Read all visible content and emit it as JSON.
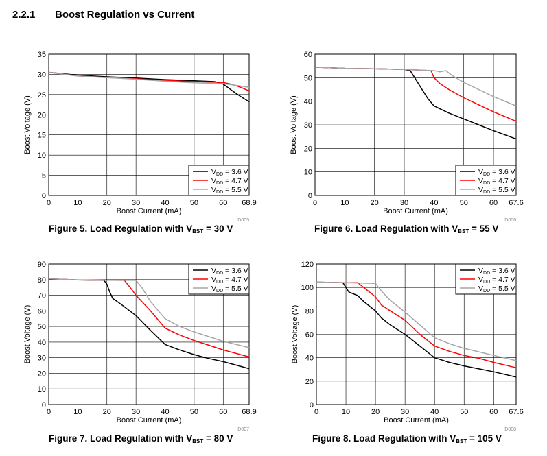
{
  "section": {
    "number": "2.2.1",
    "title": "Boost Regulation vs Current"
  },
  "chart_data": [
    {
      "id": "fig5",
      "type": "line",
      "code": "D005",
      "caption": {
        "prefix": "Figure 5. Load Regulation with V",
        "sub": "BST",
        "suffix": " = 30 V"
      },
      "xlabel": "Boost Current (mA)",
      "ylabel": "Boost Voltage (V)",
      "xlim": [
        0,
        68.9
      ],
      "ylim": [
        0,
        35
      ],
      "xticks": [
        0,
        10,
        20,
        30,
        40,
        50,
        60,
        68.9
      ],
      "yticks": [
        0,
        5,
        10,
        15,
        20,
        25,
        30,
        35
      ],
      "grid": true,
      "legend_position": "bottom-right",
      "series": [
        {
          "name_main": "V",
          "name_sub": "DD",
          "name_tail": " = 3.6 V",
          "color": "#000000",
          "points": [
            [
              0,
              30.5
            ],
            [
              10,
              29.8
            ],
            [
              20,
              29.4
            ],
            [
              30,
              29.1
            ],
            [
              40,
              28.7
            ],
            [
              50,
              28.4
            ],
            [
              57,
              28.2
            ],
            [
              60,
              27.6
            ],
            [
              63,
              26.0
            ],
            [
              66,
              24.5
            ],
            [
              68.9,
              23.2
            ]
          ]
        },
        {
          "name_main": "V",
          "name_sub": "DD",
          "name_tail": " = 4.7 V",
          "color": "#ff0000",
          "points": [
            [
              0,
              30.5
            ],
            [
              10,
              29.6
            ],
            [
              20,
              29.2
            ],
            [
              30,
              28.9
            ],
            [
              40,
              28.5
            ],
            [
              50,
              28.2
            ],
            [
              60,
              28.0
            ],
            [
              63,
              27.5
            ],
            [
              66,
              26.8
            ],
            [
              68.9,
              25.9
            ]
          ]
        },
        {
          "name_main": "V",
          "name_sub": "DD",
          "name_tail": " = 5.5 V",
          "color": "#a6a6a6",
          "points": [
            [
              0,
              30.5
            ],
            [
              10,
              29.6
            ],
            [
              20,
              29.2
            ],
            [
              30,
              28.8
            ],
            [
              40,
              28.3
            ],
            [
              50,
              27.9
            ],
            [
              60,
              27.7
            ],
            [
              64,
              27.3
            ],
            [
              68.9,
              26.8
            ]
          ]
        }
      ]
    },
    {
      "id": "fig6",
      "type": "line",
      "code": "D006",
      "caption": {
        "prefix": "Figure 6. Load Regulation with V",
        "sub": "BST",
        "suffix": " = 55 V"
      },
      "xlabel": "Boost Current (mA)",
      "ylabel": "Boost Voltage (V)",
      "xlim": [
        0,
        67.6
      ],
      "ylim": [
        0,
        60
      ],
      "xticks": [
        0,
        10,
        20,
        30,
        40,
        50,
        60,
        67.6
      ],
      "yticks": [
        0,
        10,
        20,
        30,
        40,
        50,
        60
      ],
      "grid": true,
      "legend_position": "bottom-right",
      "series": [
        {
          "name_main": "V",
          "name_sub": "DD",
          "name_tail": " = 3.6 V",
          "color": "#000000",
          "points": [
            [
              0,
              54.5
            ],
            [
              10,
              54.0
            ],
            [
              20,
              53.8
            ],
            [
              30,
              53.5
            ],
            [
              32,
              53.0
            ],
            [
              34,
              49.0
            ],
            [
              36,
              45.0
            ],
            [
              38,
              41.0
            ],
            [
              40,
              38.0
            ],
            [
              45,
              35.0
            ],
            [
              50,
              32.5
            ],
            [
              55,
              30.0
            ],
            [
              60,
              27.5
            ],
            [
              67.6,
              24.0
            ]
          ]
        },
        {
          "name_main": "V",
          "name_sub": "DD",
          "name_tail": " = 4.7 V",
          "color": "#ff0000",
          "points": [
            [
              0,
              54.5
            ],
            [
              10,
              54.0
            ],
            [
              20,
              53.8
            ],
            [
              30,
              53.5
            ],
            [
              39,
              53.0
            ],
            [
              40,
              50.0
            ],
            [
              42,
              47.5
            ],
            [
              45,
              45.0
            ],
            [
              50,
              41.5
            ],
            [
              55,
              38.5
            ],
            [
              60,
              35.5
            ],
            [
              67.6,
              31.5
            ]
          ]
        },
        {
          "name_main": "V",
          "name_sub": "DD",
          "name_tail": " = 5.5 V",
          "color": "#a6a6a6",
          "points": [
            [
              0,
              54.5
            ],
            [
              10,
              54.0
            ],
            [
              20,
              53.8
            ],
            [
              30,
              53.5
            ],
            [
              40,
              53.0
            ],
            [
              42,
              52.5
            ],
            [
              44,
              53.0
            ],
            [
              46,
              51.0
            ],
            [
              50,
              48.0
            ],
            [
              55,
              45.0
            ],
            [
              60,
              42.0
            ],
            [
              67.6,
              38.0
            ]
          ]
        }
      ]
    },
    {
      "id": "fig7",
      "type": "line",
      "code": "D007",
      "caption": {
        "prefix": "Figure 7. Load Regulation with V",
        "sub": "BST",
        "suffix": " = 80 V"
      },
      "xlabel": "Boost Current (mA)",
      "ylabel": "Boost Voltage (V)",
      "xlim": [
        0,
        68.9
      ],
      "ylim": [
        0,
        90
      ],
      "xticks": [
        0,
        10,
        20,
        30,
        40,
        50,
        60,
        68.9
      ],
      "yticks": [
        0,
        10,
        20,
        30,
        40,
        50,
        60,
        70,
        80,
        90
      ],
      "grid": true,
      "legend_position": "top-right",
      "series": [
        {
          "name_main": "V",
          "name_sub": "DD",
          "name_tail": " = 3.6 V",
          "color": "#000000",
          "points": [
            [
              0,
              80.5
            ],
            [
              10,
              79.8
            ],
            [
              19,
              79.5
            ],
            [
              20,
              77.0
            ],
            [
              21,
              72.0
            ],
            [
              22,
              68.0
            ],
            [
              25,
              64.0
            ],
            [
              30,
              57.0
            ],
            [
              35,
              47.5
            ],
            [
              40,
              38.5
            ],
            [
              45,
              35.0
            ],
            [
              50,
              32.0
            ],
            [
              55,
              29.5
            ],
            [
              60,
              27.5
            ],
            [
              68.9,
              23.0
            ]
          ]
        },
        {
          "name_main": "V",
          "name_sub": "DD",
          "name_tail": " = 4.7 V",
          "color": "#ff0000",
          "points": [
            [
              0,
              80.5
            ],
            [
              10,
              79.8
            ],
            [
              20,
              79.6
            ],
            [
              26,
              79.5
            ],
            [
              28,
              75.0
            ],
            [
              30,
              70.0
            ],
            [
              35,
              60.0
            ],
            [
              40,
              49.0
            ],
            [
              45,
              44.5
            ],
            [
              50,
              41.0
            ],
            [
              55,
              38.0
            ],
            [
              60,
              35.0
            ],
            [
              68.9,
              30.5
            ]
          ]
        },
        {
          "name_main": "V",
          "name_sub": "DD",
          "name_tail": " = 5.5 V",
          "color": "#a6a6a6",
          "points": [
            [
              0,
              80.5
            ],
            [
              10,
              79.8
            ],
            [
              20,
              79.6
            ],
            [
              30,
              79.5
            ],
            [
              32,
              75.0
            ],
            [
              35,
              66.0
            ],
            [
              40,
              55.0
            ],
            [
              45,
              50.0
            ],
            [
              50,
              46.5
            ],
            [
              55,
              43.5
            ],
            [
              60,
              40.5
            ],
            [
              68.9,
              36.5
            ]
          ]
        }
      ]
    },
    {
      "id": "fig8",
      "type": "line",
      "code": "D008",
      "caption": {
        "prefix": "Figure 8. Load Regulation with V",
        "sub": "BST",
        "suffix": " = 105 V"
      },
      "xlabel": "Boost Current (mA)",
      "ylabel": "Boost Voltage (V)",
      "xlim": [
        0,
        67.6
      ],
      "ylim": [
        0,
        120
      ],
      "xticks": [
        0,
        10,
        20,
        30,
        40,
        50,
        60,
        67.6
      ],
      "yticks": [
        0,
        20,
        40,
        60,
        80,
        100,
        120
      ],
      "grid": true,
      "legend_position": "top-right",
      "series": [
        {
          "name_main": "V",
          "name_sub": "DD",
          "name_tail": " = 3.6 V",
          "color": "#000000",
          "points": [
            [
              0,
              104.5
            ],
            [
              9,
              104.0
            ],
            [
              10,
              100.0
            ],
            [
              11,
              96.0
            ],
            [
              14,
              93.0
            ],
            [
              16,
              88.0
            ],
            [
              18,
              84.0
            ],
            [
              20,
              80.0
            ],
            [
              22,
              74.0
            ],
            [
              25,
              68.0
            ],
            [
              30,
              60.0
            ],
            [
              35,
              50.0
            ],
            [
              40,
              40.0
            ],
            [
              45,
              36.0
            ],
            [
              50,
              33.0
            ],
            [
              55,
              30.5
            ],
            [
              60,
              28.0
            ],
            [
              67.6,
              23.5
            ]
          ]
        },
        {
          "name_main": "V",
          "name_sub": "DD",
          "name_tail": " = 4.7 V",
          "color": "#ff0000",
          "points": [
            [
              0,
              104.5
            ],
            [
              10,
              104.0
            ],
            [
              14,
              104.0
            ],
            [
              16,
              100.0
            ],
            [
              18,
              96.0
            ],
            [
              20,
              92.0
            ],
            [
              22,
              85.0
            ],
            [
              25,
              80.0
            ],
            [
              30,
              72.0
            ],
            [
              35,
              60.0
            ],
            [
              40,
              50.0
            ],
            [
              45,
              45.5
            ],
            [
              50,
              42.0
            ],
            [
              55,
              39.5
            ],
            [
              60,
              36.0
            ],
            [
              67.6,
              31.5
            ]
          ]
        },
        {
          "name_main": "V",
          "name_sub": "DD",
          "name_tail": " = 5.5 V",
          "color": "#a6a6a6",
          "points": [
            [
              0,
              104.5
            ],
            [
              10,
              104.0
            ],
            [
              20,
              103.5
            ],
            [
              22,
              97.0
            ],
            [
              25,
              89.0
            ],
            [
              30,
              79.0
            ],
            [
              35,
              68.0
            ],
            [
              40,
              57.0
            ],
            [
              45,
              52.0
            ],
            [
              50,
              48.0
            ],
            [
              55,
              45.0
            ],
            [
              60,
              42.0
            ],
            [
              67.6,
              37.5
            ]
          ]
        }
      ]
    }
  ]
}
